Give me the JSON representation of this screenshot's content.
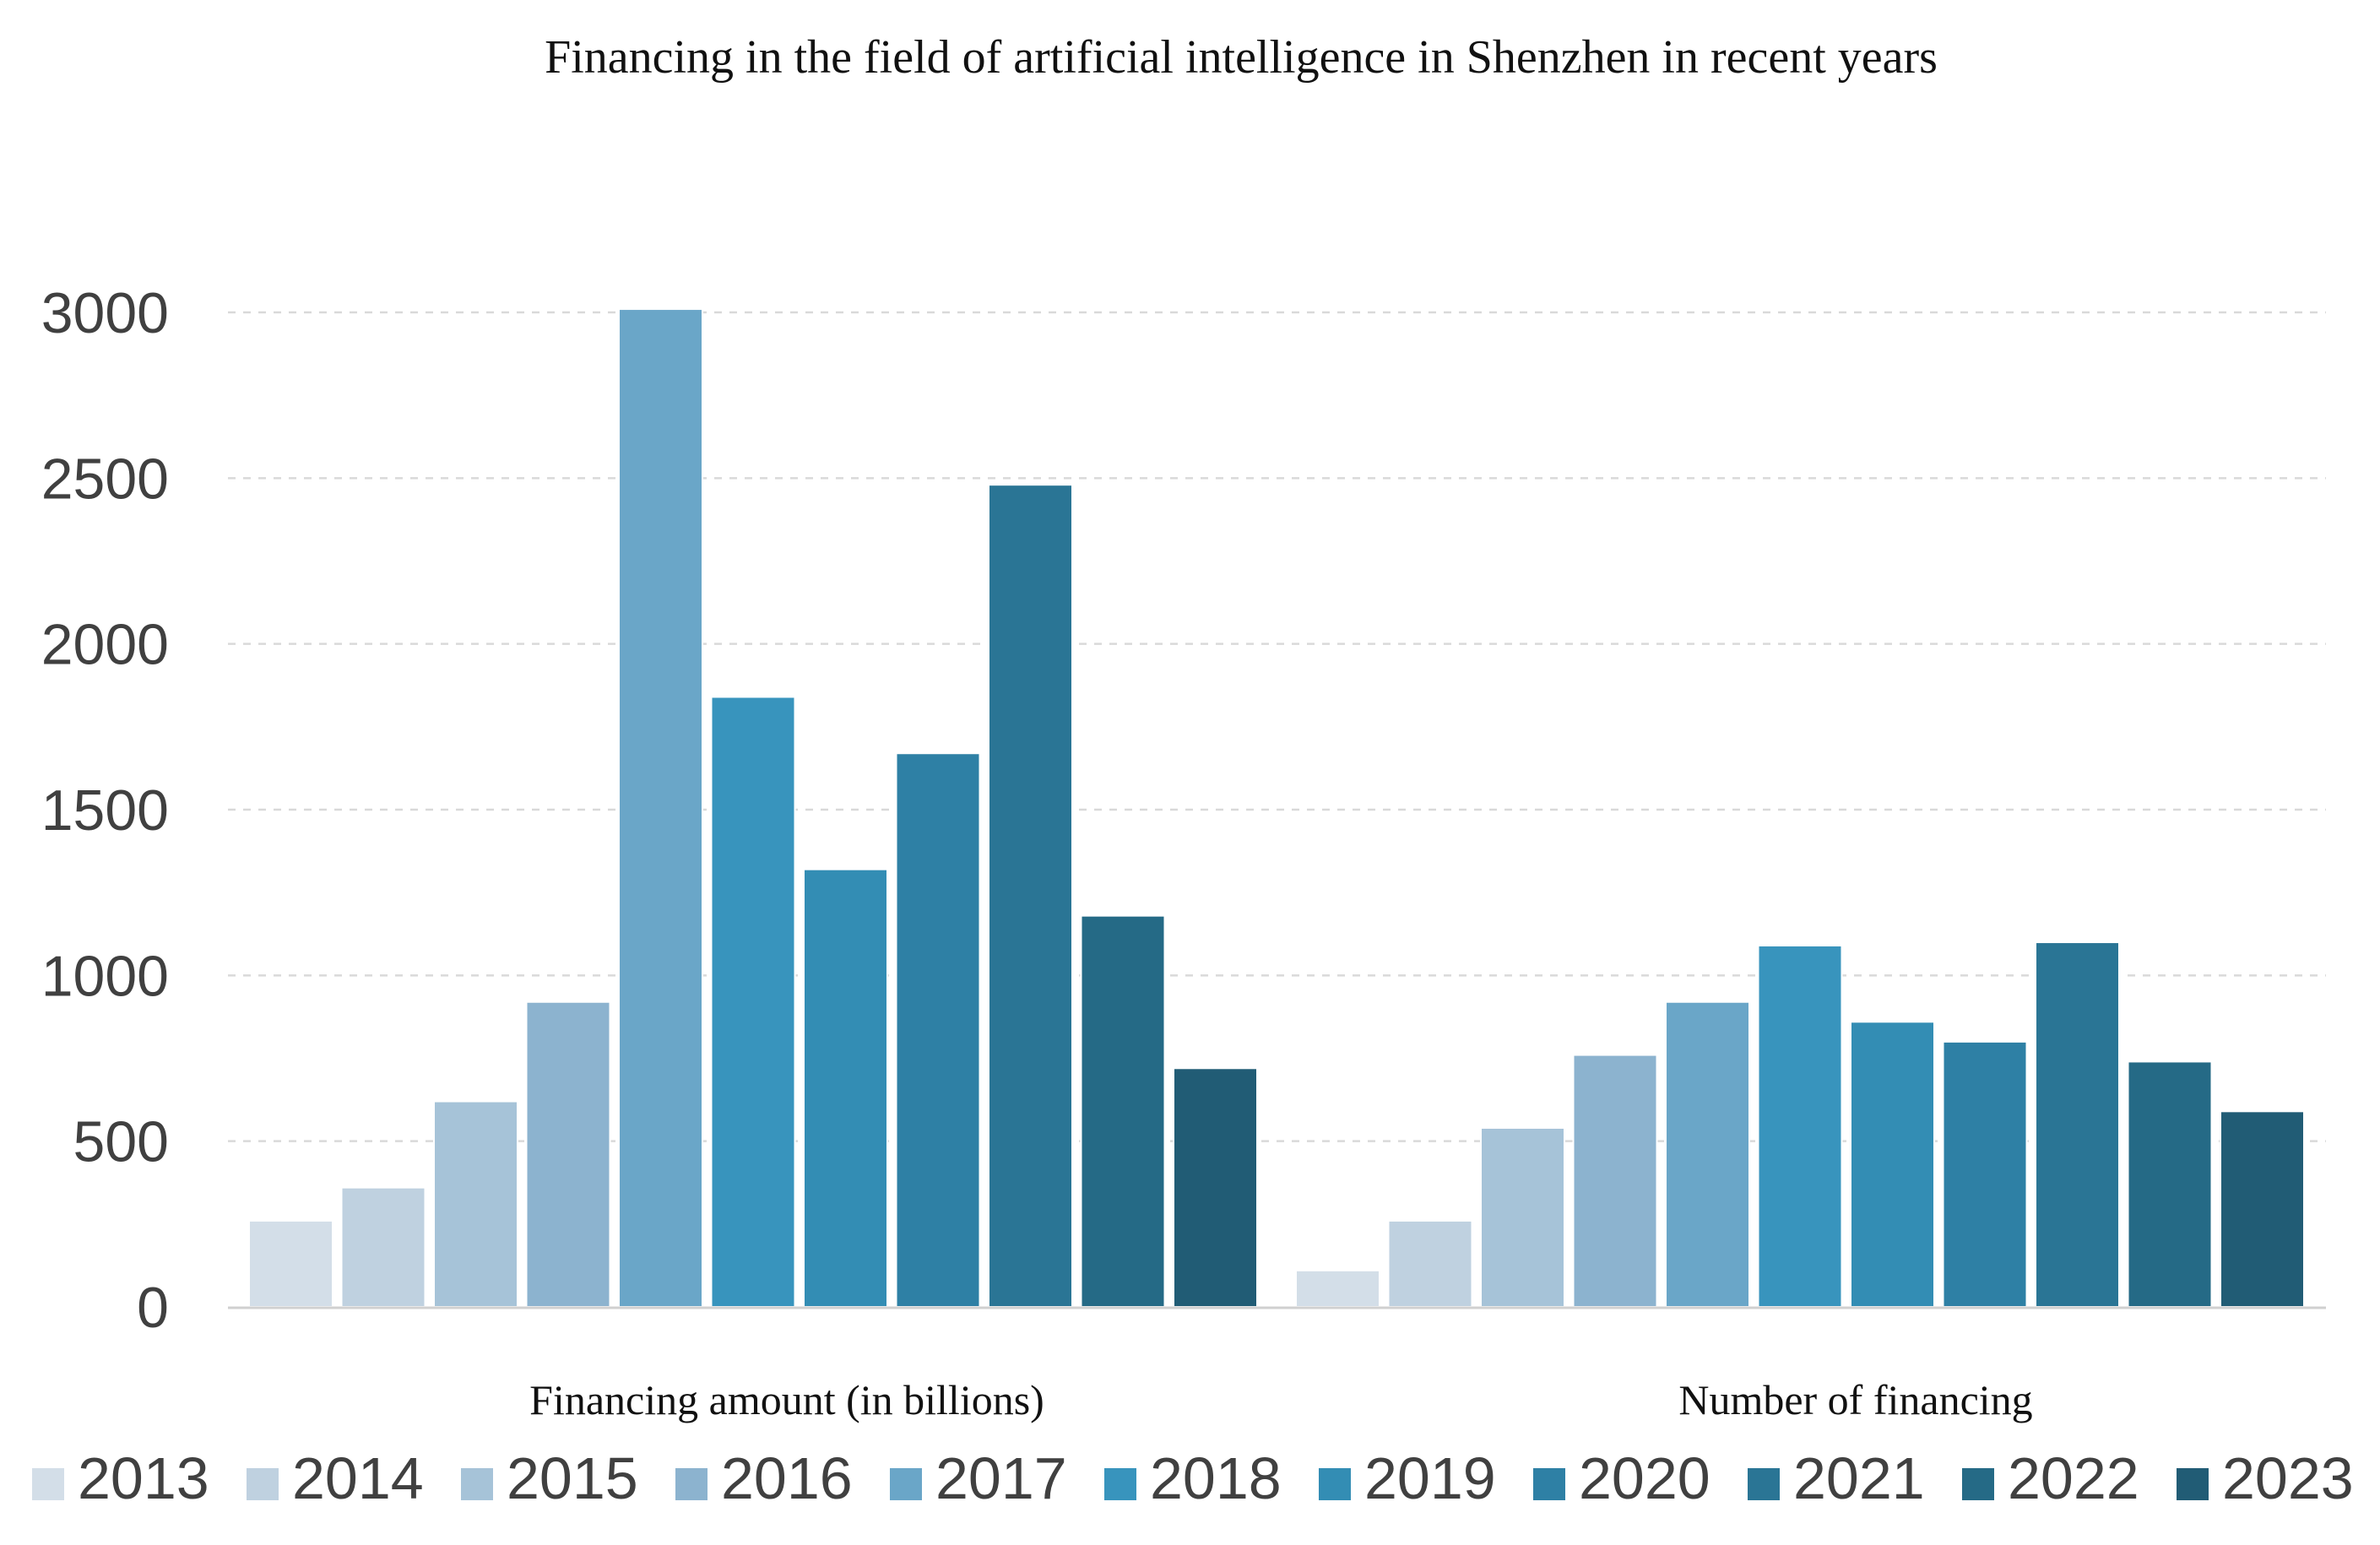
{
  "chart_data": {
    "type": "bar",
    "title": "Financing in the field of artificial intelligence in Shenzhen in recent years",
    "xlabel": "",
    "ylabel": "",
    "ylim": [
      0,
      3000
    ],
    "yticks": [
      0,
      500,
      1000,
      1500,
      2000,
      2500,
      3000
    ],
    "grid": true,
    "legend_position": "bottom",
    "categories": [
      "Financing amount (in billions)",
      "Number of financing"
    ],
    "series": [
      {
        "name": "2013",
        "color": "#d3dee8",
        "values": [
          260,
          110
        ]
      },
      {
        "name": "2014",
        "color": "#bfd1e0",
        "values": [
          360,
          260
        ]
      },
      {
        "name": "2015",
        "color": "#a6c3d8",
        "values": [
          620,
          540
        ]
      },
      {
        "name": "2016",
        "color": "#8cb3cf",
        "values": [
          920,
          760
        ]
      },
      {
        "name": "2017",
        "color": "#6aa6c8",
        "values": [
          3010,
          920
        ]
      },
      {
        "name": "2018",
        "color": "#3894bd",
        "values": [
          1840,
          1090
        ]
      },
      {
        "name": "2019",
        "color": "#338db4",
        "values": [
          1320,
          860
        ]
      },
      {
        "name": "2020",
        "color": "#2e80a5",
        "values": [
          1670,
          800
        ]
      },
      {
        "name": "2021",
        "color": "#2a7595",
        "values": [
          2480,
          1100
        ]
      },
      {
        "name": "2022",
        "color": "#256a86",
        "values": [
          1180,
          740
        ]
      },
      {
        "name": "2023",
        "color": "#215c75",
        "values": [
          720,
          590
        ]
      }
    ]
  }
}
